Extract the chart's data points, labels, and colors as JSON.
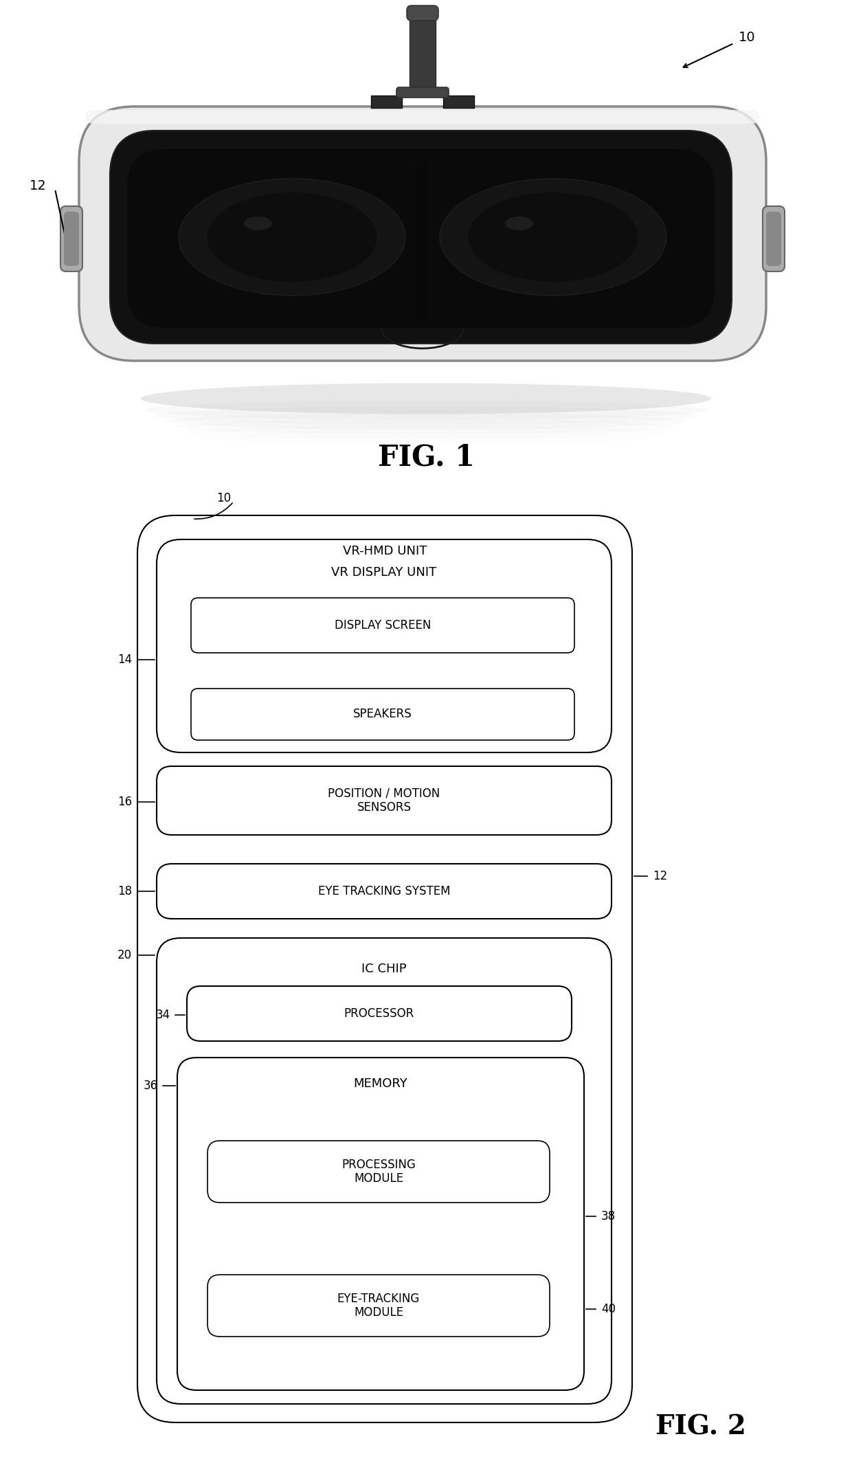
{
  "fig1_label": "FIG. 1",
  "fig2_label": "FIG. 2",
  "ref_10": "10",
  "ref_12": "12",
  "ref_14": "14",
  "ref_16": "16",
  "ref_18": "18",
  "ref_20": "20",
  "ref_34": "34",
  "ref_36": "36",
  "ref_38": "38",
  "ref_40": "40",
  "vr_hmd_unit": "VR-HMD UNIT",
  "vr_display_unit": "VR DISPLAY UNIT",
  "display_screen": "DISPLAY SCREEN",
  "speakers": "SPEAKERS",
  "position_motion": "POSITION / MOTION\nSENSORS",
  "eye_tracking": "EYE TRACKING SYSTEM",
  "ic_chip": "IC CHIP",
  "processor": "PROCESSOR",
  "memory": "MEMORY",
  "processing_module": "PROCESSING\nMODULE",
  "eye_tracking_module": "EYE-TRACKING\nMODULE",
  "bg_color": "#ffffff",
  "text_color": "#000000"
}
